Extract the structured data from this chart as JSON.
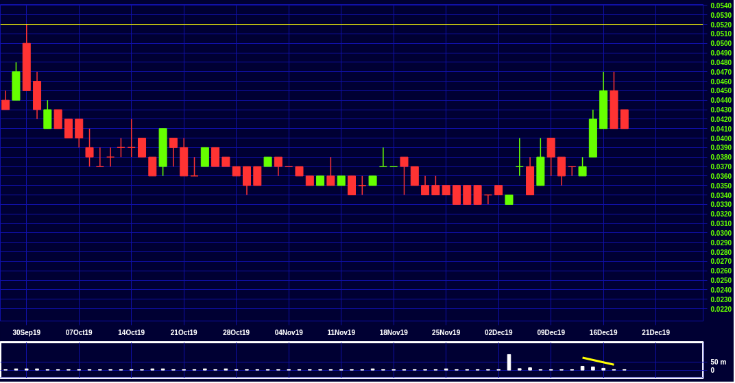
{
  "chart_data": [
    {
      "type": "candlestick",
      "categories": [
        null,
        null,
        "30Sep19",
        null,
        null,
        null,
        null,
        "07Oct19",
        null,
        null,
        null,
        null,
        "14Oct19",
        null,
        null,
        null,
        null,
        "21Oct19",
        null,
        null,
        null,
        null,
        "28Oct19",
        null,
        null,
        null,
        null,
        "04Nov19",
        null,
        null,
        null,
        null,
        "11Nov19",
        null,
        null,
        null,
        null,
        "18Nov19",
        null,
        null,
        null,
        null,
        "25Nov19",
        null,
        null,
        null,
        null,
        "02Dec19",
        null,
        null,
        null,
        null,
        "09Dec19",
        null,
        null,
        null,
        null,
        "16Dec19",
        null,
        null,
        null,
        null,
        "21Dec19",
        null,
        null,
        null,
        null
      ],
      "ohlc": [
        [
          0.044,
          0.045,
          0.043,
          0.043
        ],
        [
          0.044,
          0.048,
          0.044,
          0.047
        ],
        [
          0.05,
          0.052,
          0.045,
          0.045
        ],
        [
          0.046,
          0.047,
          0.042,
          0.043
        ],
        [
          0.041,
          0.044,
          0.041,
          0.043
        ],
        [
          0.043,
          0.043,
          0.041,
          0.041
        ],
        [
          0.042,
          0.042,
          0.04,
          0.04
        ],
        [
          0.042,
          0.042,
          0.039,
          0.04
        ],
        [
          0.039,
          0.041,
          0.037,
          0.038
        ],
        [
          0.037,
          0.039,
          0.037,
          0.037
        ],
        [
          0.038,
          0.039,
          0.037,
          0.038
        ],
        [
          0.039,
          0.04,
          0.038,
          0.039
        ],
        [
          0.039,
          0.042,
          0.038,
          0.039
        ],
        [
          0.04,
          0.04,
          0.038,
          0.038
        ],
        [
          0.038,
          0.038,
          0.036,
          0.036
        ],
        [
          0.037,
          0.041,
          0.036,
          0.041
        ],
        [
          0.04,
          0.04,
          0.037,
          0.039
        ],
        [
          0.039,
          0.04,
          0.036,
          0.036
        ],
        [
          0.036,
          0.038,
          0.036,
          0.036
        ],
        [
          0.037,
          0.039,
          0.037,
          0.039
        ],
        [
          0.039,
          0.039,
          0.037,
          0.037
        ],
        [
          0.038,
          0.038,
          0.037,
          0.037
        ],
        [
          0.037,
          0.037,
          0.036,
          0.036
        ],
        [
          0.037,
          0.037,
          0.034,
          0.035
        ],
        [
          0.037,
          0.037,
          0.035,
          0.035
        ],
        [
          0.037,
          0.038,
          0.037,
          0.038
        ],
        [
          0.038,
          0.038,
          0.036,
          0.037
        ],
        [
          0.037,
          0.037,
          0.037,
          0.037
        ],
        [
          0.037,
          0.037,
          0.036,
          0.036
        ],
        [
          0.036,
          0.036,
          0.035,
          0.035
        ],
        [
          0.035,
          0.036,
          0.035,
          0.036
        ],
        [
          0.036,
          0.038,
          0.035,
          0.035
        ],
        [
          0.035,
          0.036,
          0.035,
          0.036
        ],
        [
          0.036,
          0.036,
          0.034,
          0.034
        ],
        [
          0.035,
          0.036,
          0.034,
          0.035
        ],
        [
          0.035,
          0.036,
          0.035,
          0.036
        ],
        [
          0.037,
          0.039,
          0.037,
          0.037
        ],
        [
          0.037,
          0.037,
          0.037,
          0.037
        ],
        [
          0.038,
          0.038,
          0.034,
          0.037
        ],
        [
          0.037,
          0.037,
          0.035,
          0.035
        ],
        [
          0.035,
          0.036,
          0.034,
          0.034
        ],
        [
          0.035,
          0.036,
          0.034,
          0.034
        ],
        [
          0.035,
          0.035,
          0.034,
          0.034
        ],
        [
          0.035,
          0.035,
          0.033,
          0.033
        ],
        [
          0.035,
          0.035,
          0.033,
          0.033
        ],
        [
          0.035,
          0.035,
          0.033,
          0.033
        ],
        [
          0.034,
          0.034,
          0.033,
          0.034
        ],
        [
          0.035,
          0.035,
          0.034,
          0.034
        ],
        [
          0.033,
          0.034,
          0.033,
          0.034
        ],
        [
          0.037,
          0.04,
          0.036,
          0.037
        ],
        [
          0.037,
          0.038,
          0.034,
          0.034
        ],
        [
          0.035,
          0.04,
          0.035,
          0.038
        ],
        [
          0.04,
          0.04,
          0.036,
          0.038
        ],
        [
          0.038,
          0.038,
          0.035,
          0.036
        ],
        [
          0.037,
          0.037,
          0.036,
          0.037
        ],
        [
          0.036,
          0.038,
          0.036,
          0.037
        ],
        [
          0.038,
          0.043,
          0.038,
          0.042
        ],
        [
          0.041,
          0.047,
          0.041,
          0.045
        ],
        [
          0.045,
          0.047,
          0.041,
          0.041
        ],
        [
          0.043,
          0.043,
          0.041,
          0.041
        ],
        null,
        null,
        null,
        null,
        null,
        null,
        null
      ],
      "colors": [
        "#ff3333",
        "#66ff00",
        "#ff3333",
        "#ff3333",
        "#66ff00",
        "#ff3333",
        "#ff3333",
        "#ff3333",
        "#ff3333",
        "#ff3333",
        "#ff3333",
        "#ff3333",
        "#ff3333",
        "#ff3333",
        "#ff3333",
        "#66ff00",
        "#ff3333",
        "#ff3333",
        "#ff3333",
        "#66ff00",
        "#ff3333",
        "#ff3333",
        "#ff3333",
        "#ff3333",
        "#ff3333",
        "#66ff00",
        "#ff3333",
        "#ff3333",
        "#ff3333",
        "#ff3333",
        "#66ff00",
        "#ff3333",
        "#66ff00",
        "#ff3333",
        "#ff3333",
        "#66ff00",
        "#66ff00",
        "#66ff00",
        "#ff3333",
        "#ff3333",
        "#ff3333",
        "#ff3333",
        "#ff3333",
        "#ff3333",
        "#ff3333",
        "#ff3333",
        "#ff3333",
        "#ff3333",
        "#66ff00",
        "#66ff00",
        "#ff3333",
        "#66ff00",
        "#ff3333",
        "#ff3333",
        "#ff3333",
        "#66ff00",
        "#66ff00",
        "#66ff00",
        "#ff3333",
        "#ff3333",
        null,
        null,
        null,
        null,
        null,
        null,
        null
      ],
      "ylim": [
        0.0207,
        0.0541
      ],
      "yticks": [
        {
          "value": 0.022,
          "label": "0.0220"
        },
        {
          "value": 0.023,
          "label": "0.0230"
        },
        {
          "value": 0.024,
          "label": "0.0240"
        },
        {
          "value": 0.025,
          "label": "0.0250"
        },
        {
          "value": 0.026,
          "label": "0.0260"
        },
        {
          "value": 0.027,
          "label": "0.0270"
        },
        {
          "value": 0.028,
          "label": "0.0280"
        },
        {
          "value": 0.029,
          "label": "0.0290"
        },
        {
          "value": 0.03,
          "label": "0.0300"
        },
        {
          "value": 0.031,
          "label": "0.0310"
        },
        {
          "value": 0.032,
          "label": "0.0320"
        },
        {
          "value": 0.033,
          "label": "0.0330"
        },
        {
          "value": 0.034,
          "label": "0.0340"
        },
        {
          "value": 0.035,
          "label": "0.0350"
        },
        {
          "value": 0.036,
          "label": "0.0360"
        },
        {
          "value": 0.037,
          "label": "0.0370"
        },
        {
          "value": 0.038,
          "label": "0.0380"
        },
        {
          "value": 0.039,
          "label": "0.0390"
        },
        {
          "value": 0.04,
          "label": "0.0400"
        },
        {
          "value": 0.041,
          "label": "0.0410"
        },
        {
          "value": 0.042,
          "label": "0.0420"
        },
        {
          "value": 0.043,
          "label": "0.0430"
        },
        {
          "value": 0.044,
          "label": "0.0440"
        },
        {
          "value": 0.045,
          "label": "0.0450"
        },
        {
          "value": 0.046,
          "label": "0.0460"
        },
        {
          "value": 0.047,
          "label": "0.0470"
        },
        {
          "value": 0.048,
          "label": "0.0480"
        },
        {
          "value": 0.049,
          "label": "0.0490"
        },
        {
          "value": 0.05,
          "label": "0.0500"
        },
        {
          "value": 0.051,
          "label": "0.0510"
        },
        {
          "value": 0.052,
          "label": "0.0520"
        },
        {
          "value": 0.053,
          "label": "0.0530"
        },
        {
          "value": 0.054,
          "label": "0.0540"
        }
      ],
      "ref_lines": [
        {
          "axis": "y",
          "value": 0.052,
          "color": "#ffff00"
        }
      ],
      "grid": true
    },
    {
      "type": "bar",
      "categories": [
        null,
        null,
        null,
        null,
        null,
        null,
        null,
        null,
        null,
        null,
        null,
        null,
        null,
        null,
        null,
        null,
        null,
        null,
        null,
        null,
        null,
        null,
        null,
        null,
        null,
        null,
        null,
        null,
        null,
        null,
        null,
        null,
        null,
        null,
        null,
        null,
        null,
        null,
        null,
        null,
        null,
        null,
        null,
        null,
        null,
        null,
        null,
        null,
        null,
        null,
        null,
        null,
        null,
        null,
        null,
        null,
        null,
        null,
        null,
        null,
        null,
        null,
        null,
        null,
        null,
        null,
        null
      ],
      "series": [
        {
          "color": "#ffffff",
          "values": [
            3,
            8,
            8,
            8,
            3,
            3,
            3,
            3,
            3,
            3,
            3,
            3,
            3,
            3,
            8,
            8,
            3,
            3,
            3,
            8,
            3,
            8,
            3,
            3,
            3,
            3,
            3,
            3,
            3,
            3,
            3,
            3,
            3,
            3,
            3,
            8,
            3,
            3,
            3,
            3,
            3,
            3,
            8,
            3,
            3,
            3,
            3,
            3,
            100,
            10,
            15,
            3,
            3,
            3,
            3,
            25,
            20,
            12,
            3,
            3,
            null,
            null,
            null,
            null,
            null,
            null,
            null
          ]
        },
        {
          "type": "line",
          "color": "#ffff00",
          "values": [
            null,
            null,
            null,
            null,
            null,
            null,
            null,
            null,
            null,
            null,
            null,
            null,
            null,
            null,
            null,
            null,
            null,
            null,
            null,
            null,
            null,
            null,
            null,
            null,
            null,
            null,
            null,
            null,
            null,
            null,
            null,
            null,
            null,
            null,
            null,
            null,
            null,
            null,
            null,
            null,
            null,
            null,
            null,
            null,
            null,
            null,
            null,
            null,
            null,
            null,
            null,
            null,
            null,
            null,
            null,
            80,
            null,
            null,
            35,
            null,
            null,
            null,
            null,
            null,
            null,
            null,
            null
          ]
        }
      ],
      "ylim": [
        -50,
        179
      ],
      "yticks": [
        0,
        {
          "value": 50,
          "label": "50 m"
        }
      ],
      "tick_labels": "y",
      "grid": true
    }
  ]
}
